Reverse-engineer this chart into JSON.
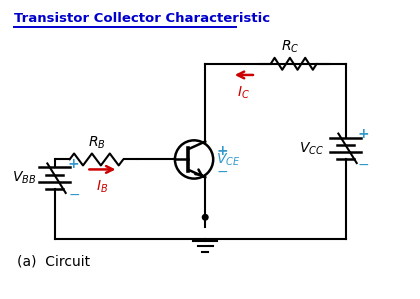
{
  "title": "Transistor Collector Characteristic",
  "title_color": "#0000cc",
  "bg_color": "#ffffff",
  "line_color": "#000000",
  "red_color": "#cc0000",
  "blue_color": "#3399cc",
  "label_circuit": "(a)  Circuit",
  "figsize": [
    4.2,
    2.99
  ],
  "dpi": 100,
  "xlim": [
    0,
    10
  ],
  "ylim": [
    0,
    7.5
  ]
}
